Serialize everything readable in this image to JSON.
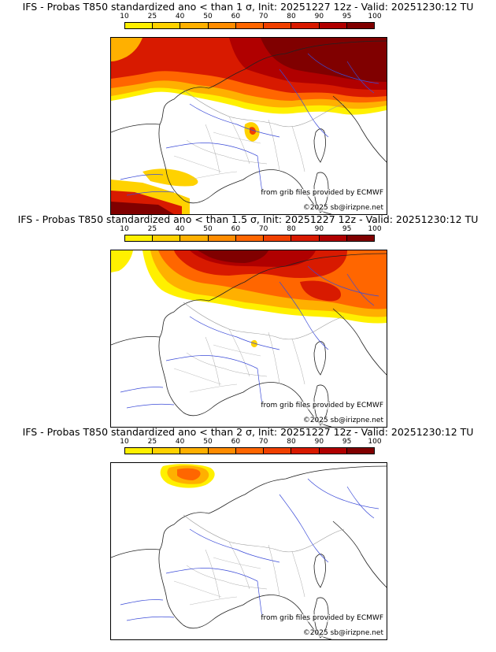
{
  "colorbar": {
    "ticks": [
      "10",
      "25",
      "40",
      "50",
      "60",
      "70",
      "80",
      "90",
      "95",
      "100"
    ],
    "colors": [
      "#fff000",
      "#ffd200",
      "#ffb000",
      "#ff8c00",
      "#ff6600",
      "#f04000",
      "#d81a00",
      "#b00000",
      "#800000"
    ]
  },
  "panels": [
    {
      "title": "IFS - Probas T850  standardized ano < than 1 σ, Init: 20251227 12z - Valid: 20251230:12 TU",
      "source": "from grib files provided by ECMWF",
      "copyright": "©2025 sb@irizpne.net"
    },
    {
      "title": "IFS - Probas T850  standardized ano < than 1.5 σ, Init: 20251227 12z - Valid: 20251230:12 TU",
      "source": "from grib files provided by ECMWF",
      "copyright": "©2025 sb@irizpne.net"
    },
    {
      "title": "IFS - Probas T850  standardized ano < than 2 σ, Init: 20251227 12z - Valid: 20251230:12 TU",
      "source": "from grib files provided by ECMWF",
      "copyright": "©2025 sb@irizpne.net"
    }
  ]
}
